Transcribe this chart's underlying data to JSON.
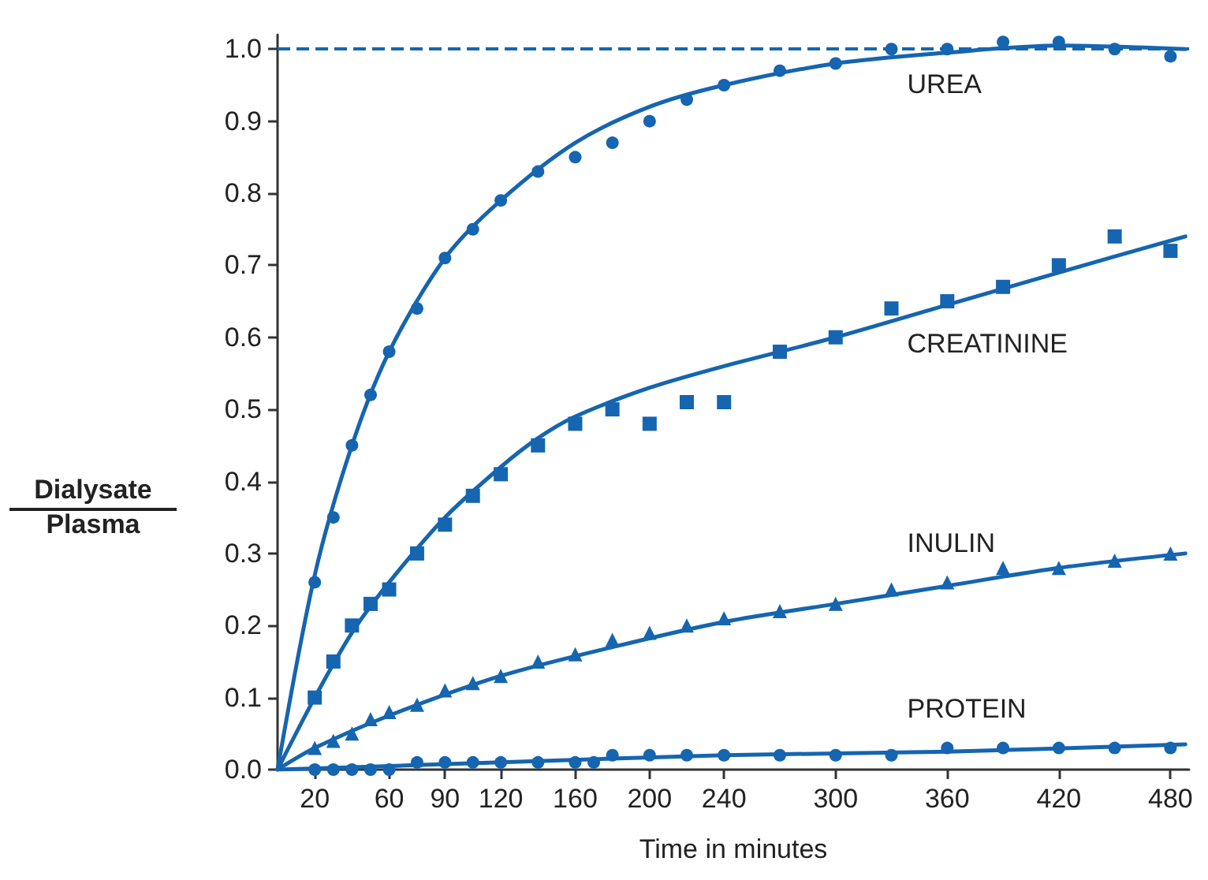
{
  "chart_data": {
    "type": "scatter",
    "xlabel": "Time in minutes",
    "ylabel": "Dialysate\nPlasma",
    "x": [
      20,
      30,
      40,
      50,
      60,
      75,
      90,
      105,
      120,
      140,
      160,
      180,
      200,
      220,
      240,
      270,
      300,
      330,
      360,
      390,
      420,
      450,
      480
    ],
    "series": [
      {
        "name": "UREA",
        "color": "#1565b0",
        "marker": "circle",
        "values": [
          0.26,
          0.35,
          0.45,
          0.52,
          0.58,
          0.64,
          0.71,
          0.75,
          0.79,
          0.83,
          0.85,
          0.87,
          0.9,
          0.93,
          0.95,
          0.97,
          0.98,
          1.0,
          1.0,
          1.01,
          1.01,
          1.0,
          0.99
        ]
      },
      {
        "name": "CREATININE",
        "color": "#1565b0",
        "marker": "square",
        "values": [
          0.1,
          0.15,
          0.2,
          0.23,
          0.25,
          0.3,
          0.34,
          0.38,
          0.41,
          0.45,
          0.48,
          0.5,
          0.48,
          0.51,
          0.51,
          0.58,
          0.6,
          0.64,
          0.65,
          0.67,
          0.7,
          0.74,
          0.72
        ]
      },
      {
        "name": "INULIN",
        "color": "#1565b0",
        "marker": "triangle",
        "values": [
          0.03,
          0.04,
          0.05,
          0.07,
          0.08,
          0.09,
          0.11,
          0.12,
          0.13,
          0.15,
          0.16,
          0.18,
          0.19,
          0.2,
          0.21,
          0.22,
          0.23,
          0.25,
          0.26,
          0.28,
          0.28,
          0.29,
          0.3
        ]
      },
      {
        "name": "PROTEIN",
        "color": "#1565b0",
        "marker": "circle",
        "x": [
          20,
          30,
          40,
          50,
          60,
          75,
          90,
          105,
          120,
          140,
          160,
          170,
          180,
          200,
          220,
          240,
          270,
          300,
          330,
          360,
          390,
          420,
          450,
          480
        ],
        "values": [
          0.0,
          0.0,
          0.0,
          0.0,
          0.0,
          0.01,
          0.01,
          0.01,
          0.01,
          0.01,
          0.01,
          0.01,
          0.02,
          0.02,
          0.02,
          0.02,
          0.02,
          0.02,
          0.02,
          0.03,
          0.03,
          0.03,
          0.03,
          0.03
        ]
      },
      {
        "type": "line",
        "color": "#1565b0",
        "x": [
          0,
          20,
          40,
          60,
          90,
          120,
          160,
          200,
          240,
          300,
          360,
          420,
          488
        ],
        "values": [
          0,
          0.27,
          0.45,
          0.58,
          0.71,
          0.79,
          0.87,
          0.92,
          0.95,
          0.98,
          0.995,
          1.005,
          1.0
        ]
      },
      {
        "type": "line",
        "color": "#1565b0",
        "x": [
          0,
          20,
          40,
          60,
          90,
          120,
          140,
          160,
          200,
          240,
          300,
          360,
          420,
          488
        ],
        "values": [
          0,
          0.1,
          0.19,
          0.26,
          0.35,
          0.42,
          0.46,
          0.49,
          0.53,
          0.56,
          0.6,
          0.645,
          0.69,
          0.74
        ]
      },
      {
        "type": "line",
        "color": "#1565b0",
        "x": [
          0,
          20,
          60,
          120,
          180,
          240,
          300,
          360,
          420,
          488
        ],
        "values": [
          0,
          0.03,
          0.075,
          0.13,
          0.17,
          0.205,
          0.23,
          0.255,
          0.28,
          0.3
        ]
      },
      {
        "type": "line",
        "color": "#1565b0",
        "x": [
          0,
          120,
          240,
          360,
          488
        ],
        "values": [
          0,
          0.01,
          0.02,
          0.025,
          0.035
        ]
      }
    ],
    "xlim": [
      0,
      490
    ],
    "xticks": [
      20,
      60,
      90,
      120,
      160,
      200,
      240,
      300,
      360,
      420,
      480
    ],
    "ylim": [
      0,
      1.02
    ],
    "yticks": [
      {
        "value": 0,
        "label": "0.0"
      },
      {
        "value": 0.1,
        "label": "0.1"
      },
      {
        "value": 0.2,
        "label": "0.2"
      },
      {
        "value": 0.3,
        "label": "0.3"
      },
      {
        "value": 0.4,
        "label": "0.4"
      },
      {
        "value": 0.5,
        "label": "0.5"
      },
      {
        "value": 0.6,
        "label": "0.6"
      },
      {
        "value": 0.7,
        "label": "0.7"
      },
      {
        "value": 0.8,
        "label": "0.8"
      },
      {
        "value": 0.9,
        "label": "0.9"
      },
      {
        "value": 1.0,
        "label": "1.0"
      }
    ],
    "ref_lines": [
      {
        "axis": "y",
        "value": 1.0,
        "color": "#1565b0",
        "line_style": "dashed"
      }
    ],
    "grid": false,
    "legend": false,
    "line_style": "solid"
  }
}
